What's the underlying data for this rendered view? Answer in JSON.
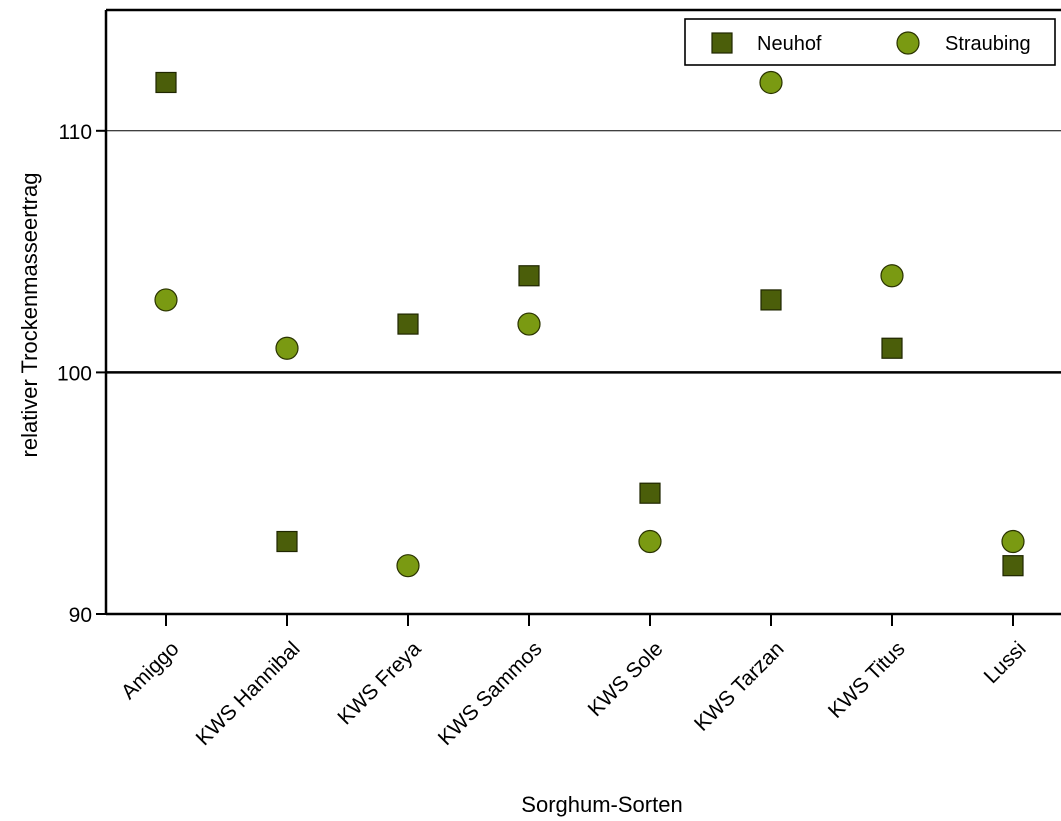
{
  "chart_data": {
    "type": "scatter",
    "title": "",
    "xlabel": "Sorghum-Sorten",
    "ylabel": "relativer Trockenmasseertrag",
    "categories": [
      "Amiggo",
      "KWS Hannibal",
      "KWS Freya",
      "KWS Sammos",
      "KWS Sole",
      "KWS Tarzan",
      "KWS Titus",
      "Lussi"
    ],
    "ylim": [
      90,
      115
    ],
    "yticks": [
      "90",
      "100",
      "110"
    ],
    "grid_lines": [
      100,
      110
    ],
    "legend_position": "top-right",
    "series": [
      {
        "name": "Neuhof",
        "marker": "square",
        "color": "#4b5e0a",
        "values": [
          112,
          93,
          102,
          104,
          95,
          103,
          101,
          92
        ]
      },
      {
        "name": "Straubing",
        "marker": "circle",
        "color": "#7a9a12",
        "values": [
          103,
          101,
          92,
          102,
          93,
          112,
          104,
          93
        ]
      }
    ]
  }
}
